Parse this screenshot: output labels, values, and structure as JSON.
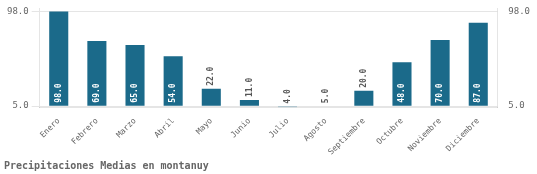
{
  "chart_data": {
    "type": "bar",
    "title": "Precipitaciones Medias en montanuy",
    "categories": [
      "Enero",
      "Febrero",
      "Marzo",
      "Abril",
      "Mayo",
      "Junio",
      "Julio",
      "Agosto",
      "Septiembre",
      "Octubre",
      "Noviembre",
      "Diciembre"
    ],
    "values": [
      98.0,
      69.0,
      65.0,
      54.0,
      22.0,
      11.0,
      4.0,
      5.0,
      20.0,
      48.0,
      70.0,
      87.0
    ],
    "value_labels": [
      "98.0",
      "69.0",
      "65.0",
      "54.0",
      "22.0",
      "11.0",
      "4.0",
      "5.0",
      "20.0",
      "48.0",
      "70.0",
      "87.0"
    ],
    "data_labels": true,
    "color": "#1b6a8a",
    "ylim": [
      4.0,
      101.0
    ],
    "yticks": [
      {
        "value": 5.0,
        "label": "5.0"
      },
      {
        "value": 98.0,
        "label": "98.0"
      }
    ],
    "y2lim": [
      4.0,
      101.0
    ],
    "y2ticks": [
      {
        "value": 5.0,
        "label": "5.0"
      },
      {
        "value": 98.0,
        "label": "98.0"
      }
    ],
    "grid": true
  }
}
